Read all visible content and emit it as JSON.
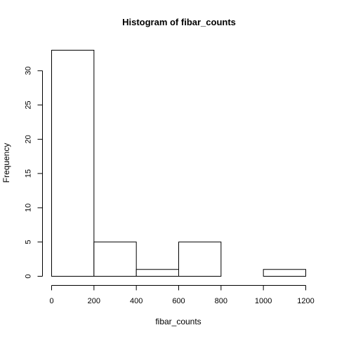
{
  "chart_data": {
    "type": "bar",
    "title": "Histogram of fibar_counts",
    "xlabel": "fibar_counts",
    "ylabel": "Frequency",
    "bins": [
      {
        "start": 0,
        "end": 200,
        "count": 33
      },
      {
        "start": 200,
        "end": 400,
        "count": 5
      },
      {
        "start": 400,
        "end": 600,
        "count": 1
      },
      {
        "start": 600,
        "end": 800,
        "count": 5
      },
      {
        "start": 800,
        "end": 1000,
        "count": 0
      },
      {
        "start": 1000,
        "end": 1200,
        "count": 1
      }
    ],
    "xlim": [
      0,
      1200
    ],
    "ylim": [
      0,
      33
    ],
    "xticks": [
      "0",
      "200",
      "400",
      "600",
      "800",
      "1000",
      "1200"
    ],
    "yticks": [
      "0",
      "5",
      "10",
      "15",
      "20",
      "25",
      "30"
    ],
    "grid": false,
    "legend": "none"
  }
}
